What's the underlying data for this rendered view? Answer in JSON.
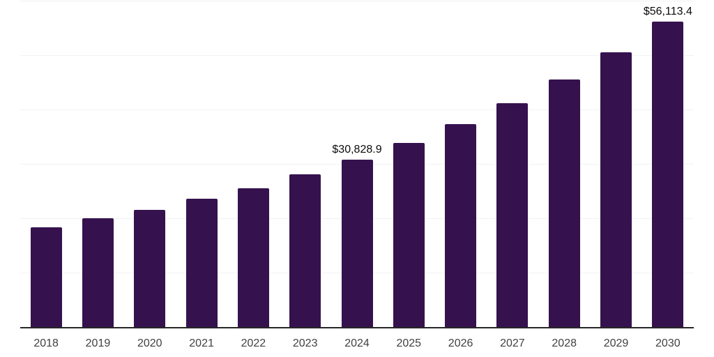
{
  "chart_data": {
    "type": "bar",
    "title": "",
    "xlabel": "",
    "ylabel": "",
    "categories": [
      "2018",
      "2019",
      "2020",
      "2021",
      "2022",
      "2023",
      "2024",
      "2025",
      "2026",
      "2027",
      "2028",
      "2029",
      "2030"
    ],
    "values": [
      18280,
      19940,
      21570,
      23580,
      25540,
      28060,
      30828.9,
      33820,
      37270,
      41110,
      45470,
      50500,
      56113.4
    ],
    "labels": [
      null,
      null,
      null,
      null,
      null,
      null,
      "$30,828.9",
      null,
      null,
      null,
      null,
      null,
      "$56,113.4"
    ],
    "ylim": [
      0,
      60000
    ],
    "grid_interval": 10000,
    "grid": "horizontal-only",
    "legend": "none",
    "bar_color": "#35124E",
    "axis_line_color": "#262626",
    "gridline_color": "#F2F2F2",
    "data_label_color": "#0A0A0A",
    "tick_label_color": "#414141"
  }
}
